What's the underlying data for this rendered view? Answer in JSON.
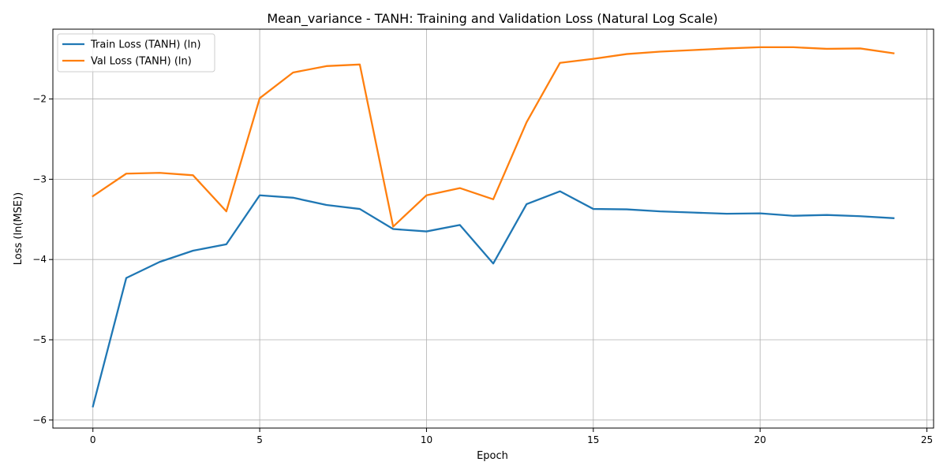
{
  "chart_data": {
    "type": "line",
    "title": "Mean_variance - TANH: Training and Validation Loss (Natural Log Scale)",
    "xlabel": "Epoch",
    "ylabel": "Loss (ln(MSE))",
    "xlim": [
      -1.2,
      25.2
    ],
    "ylim": [
      -6.1,
      -1.13
    ],
    "xticks": [
      0,
      5,
      10,
      15,
      20,
      25
    ],
    "yticks": [
      -6,
      -5,
      -4,
      -3,
      -2
    ],
    "ytick_labels": [
      "−6",
      "−5",
      "−4",
      "−3",
      "−2"
    ],
    "grid": true,
    "legend_position": "top-left",
    "x": [
      0,
      1,
      2,
      3,
      4,
      5,
      6,
      7,
      8,
      9,
      10,
      11,
      12,
      13,
      14,
      15,
      16,
      17,
      18,
      19,
      20,
      21,
      22,
      23,
      24
    ],
    "series": [
      {
        "name": "Train Loss (TANH) (ln)",
        "color": "#1f77b4",
        "values": [
          -5.83,
          -4.23,
          -4.03,
          -3.89,
          -3.81,
          -3.2,
          -3.23,
          -3.32,
          -3.37,
          -3.62,
          -3.65,
          -3.57,
          -4.05,
          -3.31,
          -3.15,
          -3.37,
          -3.375,
          -3.4,
          -3.415,
          -3.43,
          -3.425,
          -3.455,
          -3.445,
          -3.46,
          -3.485
        ]
      },
      {
        "name": "Val Loss (TANH) (ln)",
        "color": "#ff7f0e",
        "values": [
          -3.21,
          -2.93,
          -2.92,
          -2.95,
          -3.4,
          -1.99,
          -1.67,
          -1.59,
          -1.57,
          -3.59,
          -3.2,
          -3.11,
          -3.25,
          -2.29,
          -1.55,
          -1.5,
          -1.44,
          -1.41,
          -1.39,
          -1.37,
          -1.355,
          -1.355,
          -1.375,
          -1.37,
          -1.43
        ]
      }
    ]
  }
}
